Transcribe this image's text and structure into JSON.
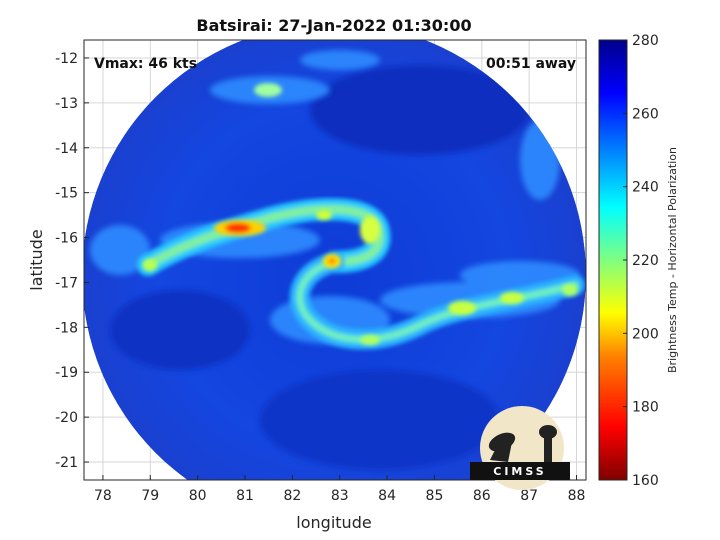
{
  "title": "Batsirai: 27-Jan-2022 01:30:00",
  "vmax_label": "Vmax: 46 kts",
  "time_away_label": "00:51 away",
  "logo_text": "CIMSS",
  "chart_data": {
    "type": "heatmap",
    "xlabel": "longitude",
    "ylabel": "latitude",
    "xlim": [
      77.6,
      88.2
    ],
    "ylim": [
      -21.4,
      -11.6
    ],
    "xticks": [
      "78",
      "79",
      "80",
      "81",
      "82",
      "83",
      "84",
      "85",
      "86",
      "87",
      "88"
    ],
    "yticks": [
      "-12",
      "-13",
      "-14",
      "-15",
      "-16",
      "-17",
      "-18",
      "-19",
      "-20",
      "-21"
    ],
    "grid": true,
    "colorbar": {
      "label": "Brightness Temp - Horizontal Polarization",
      "range": [
        160,
        280
      ],
      "ticks": [
        "280",
        "260",
        "240",
        "220",
        "200",
        "180",
        "160"
      ],
      "colormap": "jet"
    },
    "storm_center": {
      "lon": 82.8,
      "lat": -16.5
    }
  }
}
